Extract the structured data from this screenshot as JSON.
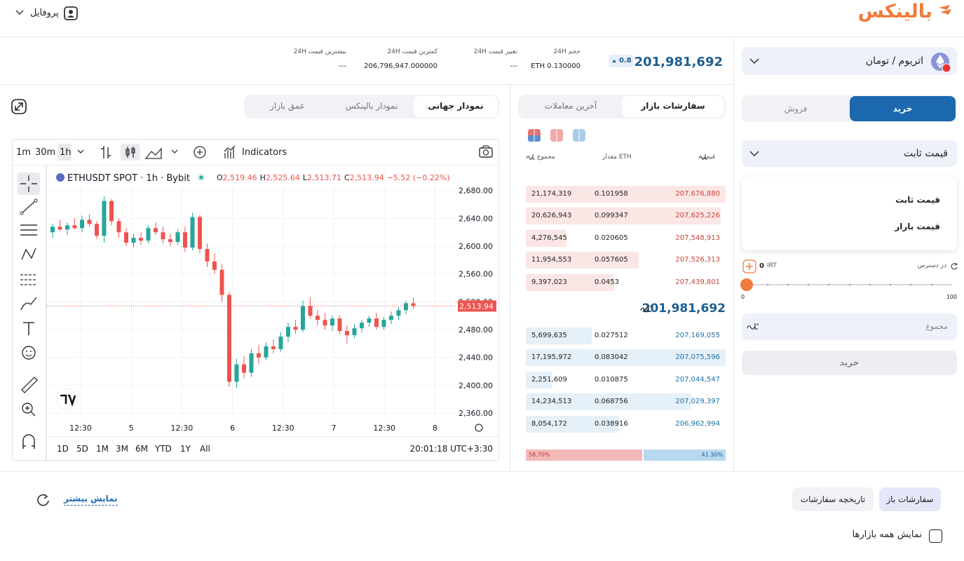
{
  "header": {
    "logo": "بالینکس",
    "profile": "پروفایل"
  },
  "market": {
    "pair": "اتریوم / تومان",
    "price": "201,981,692",
    "change": "0.8"
  },
  "stats": [
    {
      "label": "حجم 24H",
      "value": "ETH 0.130000"
    },
    {
      "label": "تغییر قیمت 24H",
      "value": "---"
    },
    {
      "label": "کمترین قیمت 24H",
      "value": "206,796,947.000000"
    },
    {
      "label": "بیشترین قیمت 24H",
      "value": "---"
    }
  ],
  "order_book": {
    "tabs": [
      "سفارشات بازار",
      "آخرین معاملات"
    ],
    "headers": {
      "price": "قیمت",
      "amount": "مقدار ETH",
      "total": "مجموع"
    },
    "asks": [
      {
        "price": "207,676,880",
        "amount": "0.101958",
        "total": {
          "value": 21174319,
          "label": "21,174,319"
        }
      },
      {
        "price": "207,625,226",
        "amount": "0.099347",
        "total": {
          "value": 20626943,
          "label": "20,626,943"
        }
      },
      {
        "price": "207,548,913",
        "amount": "0.020605",
        "total": {
          "value": 4276545,
          "label": "4,276,545"
        }
      },
      {
        "price": "207,526,313",
        "amount": "0.057605",
        "total": {
          "value": 11954553,
          "label": "11,954,553"
        }
      },
      {
        "price": "207,439,801",
        "amount": "0.0453",
        "total": {
          "value": 9397023,
          "label": "9,397,023"
        }
      }
    ],
    "mid_price": "201,981,692",
    "bids": [
      {
        "price": "207,169,055",
        "amount": "0.027512",
        "total": {
          "value": 5699635,
          "label": "5,699,635"
        }
      },
      {
        "price": "207,075,596",
        "amount": "0.083042",
        "total": {
          "value": 17195972,
          "label": "17,195,972"
        }
      },
      {
        "price": "207,044,547",
        "amount": "0.010875",
        "total": {
          "value": 2251609,
          "label": "2,251,609"
        }
      },
      {
        "price": "207,029,397",
        "amount": "0.068756",
        "total": {
          "value": 14234513,
          "label": "14,234,513"
        }
      },
      {
        "price": "206,962,994",
        "amount": "0.038916",
        "total": {
          "value": 8054172,
          "label": "8,054,172"
        }
      }
    ],
    "depth": [
      {
        "value": 58.7,
        "label": "58.70%"
      },
      {
        "value": 41.3,
        "label": "41.30%"
      }
    ]
  },
  "chart_panel": {
    "tabs": [
      "نمودار جهانی",
      "نمودار بالینکس",
      "عمق بازار"
    ],
    "intervals": [
      "1m",
      "30m",
      "1h"
    ],
    "indicators": "Indicators",
    "ranges": [
      "1D",
      "5D",
      "1M",
      "3M",
      "6M",
      "YTD",
      "1Y",
      "All"
    ],
    "clock": "20:01:18 UTC+3:30"
  },
  "chart_data": {
    "type": "candlestick",
    "title": "ETHUSDT SPOT · 1h · Bybit",
    "ohlc_legend": [
      {
        "key": "O",
        "value": "2,519.46"
      },
      {
        "key": "H",
        "value": "2,525.64"
      },
      {
        "key": "L",
        "value": "2,513.71"
      },
      {
        "key": "C",
        "value": "2,513.94"
      }
    ],
    "change": "−5.52 (−0.22%)",
    "x_labels": [
      "12:30",
      "5",
      "12:30",
      "6",
      "12:30",
      "7",
      "12:30",
      "8"
    ],
    "candles": [
      [
        2620,
        2632,
        2612,
        2628
      ],
      [
        2628,
        2638,
        2622,
        2624
      ],
      [
        2624,
        2634,
        2616,
        2630
      ],
      [
        2630,
        2640,
        2624,
        2626
      ],
      [
        2626,
        2644,
        2620,
        2638
      ],
      [
        2638,
        2646,
        2628,
        2632
      ],
      [
        2632,
        2636,
        2610,
        2615
      ],
      [
        2615,
        2672,
        2605,
        2665
      ],
      [
        2665,
        2668,
        2630,
        2636
      ],
      [
        2636,
        2640,
        2612,
        2620
      ],
      [
        2620,
        2626,
        2600,
        2605
      ],
      [
        2605,
        2618,
        2598,
        2612
      ],
      [
        2612,
        2620,
        2602,
        2608
      ],
      [
        2608,
        2630,
        2604,
        2626
      ],
      [
        2626,
        2634,
        2616,
        2620
      ],
      [
        2620,
        2628,
        2604,
        2610
      ],
      [
        2610,
        2618,
        2600,
        2606
      ],
      [
        2606,
        2624,
        2602,
        2620
      ],
      [
        2620,
        2628,
        2592,
        2598
      ],
      [
        2598,
        2648,
        2594,
        2642
      ],
      [
        2642,
        2645,
        2590,
        2596
      ],
      [
        2596,
        2604,
        2570,
        2578
      ],
      [
        2578,
        2590,
        2560,
        2566
      ],
      [
        2566,
        2574,
        2520,
        2530
      ],
      [
        2530,
        2534,
        2398,
        2405
      ],
      [
        2405,
        2438,
        2396,
        2430
      ],
      [
        2430,
        2442,
        2410,
        2418
      ],
      [
        2418,
        2452,
        2412,
        2446
      ],
      [
        2446,
        2458,
        2430,
        2440
      ],
      [
        2440,
        2462,
        2436,
        2456
      ],
      [
        2456,
        2466,
        2446,
        2452
      ],
      [
        2452,
        2476,
        2448,
        2470
      ],
      [
        2470,
        2490,
        2462,
        2484
      ],
      [
        2484,
        2494,
        2474,
        2480
      ],
      [
        2480,
        2522,
        2476,
        2514
      ],
      [
        2514,
        2526,
        2496,
        2500
      ],
      [
        2500,
        2508,
        2486,
        2494
      ],
      [
        2494,
        2504,
        2480,
        2486
      ],
      [
        2486,
        2500,
        2478,
        2496
      ],
      [
        2496,
        2500,
        2474,
        2478
      ],
      [
        2478,
        2486,
        2460,
        2472
      ],
      [
        2472,
        2488,
        2468,
        2482
      ],
      [
        2482,
        2494,
        2476,
        2490
      ],
      [
        2490,
        2500,
        2484,
        2496
      ],
      [
        2496,
        2504,
        2480,
        2484
      ],
      [
        2484,
        2498,
        2480,
        2494
      ],
      [
        2494,
        2506,
        2488,
        2500
      ],
      [
        2500,
        2512,
        2494,
        2508
      ],
      [
        2508,
        2522,
        2502,
        2518
      ],
      [
        2518,
        2526,
        2510,
        2514
      ]
    ],
    "ylim": [
      2351,
      2712
    ],
    "yticks": [
      {
        "value": 2680,
        "label": "2,680.00"
      },
      {
        "value": 2640,
        "label": "2,640.00"
      },
      {
        "value": 2600,
        "label": "2,600.00"
      },
      {
        "value": 2560,
        "label": "2,560.00"
      },
      {
        "value": 2520,
        "label": "2,520.00"
      },
      {
        "value": 2480,
        "label": "2,480.00"
      },
      {
        "value": 2440,
        "label": "2,440.00"
      },
      {
        "value": 2400,
        "label": "2,400.00"
      },
      {
        "value": 2360,
        "label": "2,360.00"
      }
    ],
    "last": {
      "value": 2513.94,
      "label": "2,513.94"
    },
    "up_color": "#26a69a",
    "down_color": "#ef5350",
    "grid": true
  },
  "trade": {
    "tabs": [
      "خرید",
      "فروش"
    ],
    "order_type": "قیمت ثابت",
    "options": [
      "قیمت ثابت",
      "قیمت بازار"
    ],
    "available_label": "در دسترس",
    "available_amount": "0",
    "available_unit": "IRT",
    "slider_min": "0",
    "slider_max": "100",
    "total_placeholder": "مجموع",
    "submit": "خرید"
  },
  "bottom": {
    "tabs": [
      "سفارشات باز",
      "تاریخچه سفارشات"
    ],
    "show_more": "نمایش بیشتر",
    "all_markets": "نمایش همه بازارها"
  }
}
